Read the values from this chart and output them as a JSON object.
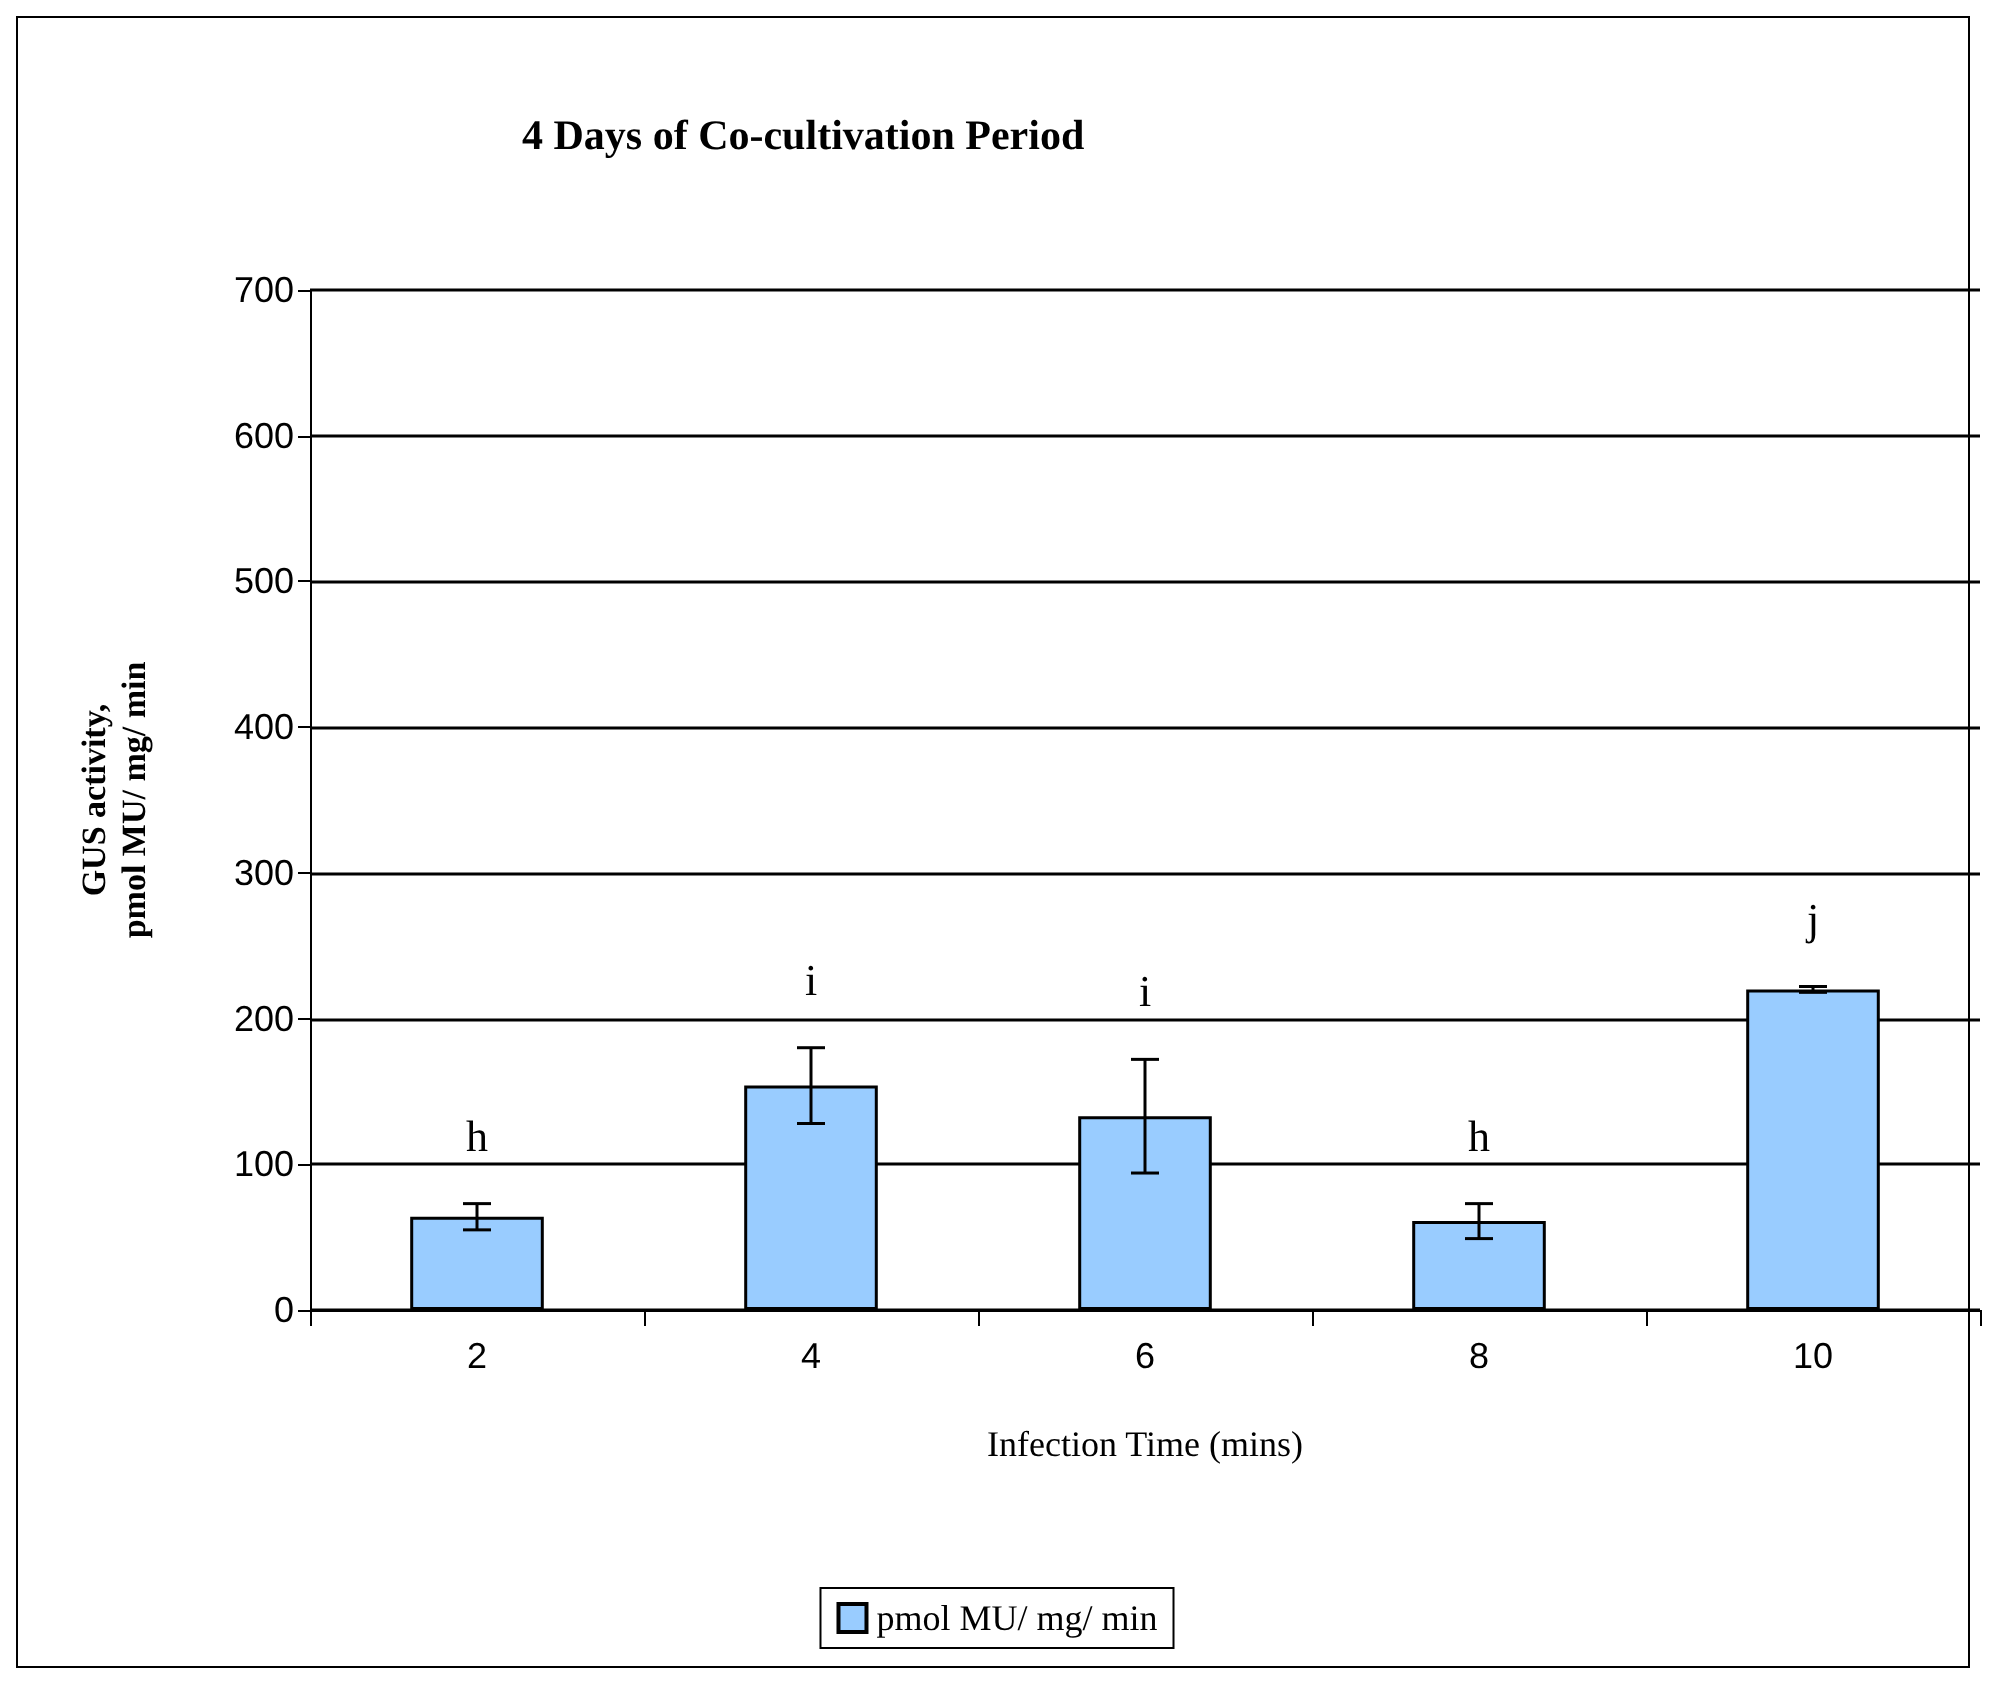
{
  "chart_data": {
    "type": "bar",
    "title": "4 Days of Co-cultivation Period",
    "xlabel": "Infection Time (mins)",
    "ylabel": "GUS activity,\npmol MU/ mg/ min",
    "categories": [
      "2",
      "4",
      "6",
      "8",
      "10"
    ],
    "series": [
      {
        "name": "pmol MU/ mg/ min",
        "color": "#99ccff",
        "values": [
          64,
          154,
          133,
          61,
          220
        ],
        "errors": [
          9,
          26,
          39,
          12,
          2
        ]
      }
    ],
    "ylim": [
      0,
      700
    ],
    "yticks": [
      0,
      100,
      200,
      300,
      400,
      500,
      600,
      700
    ],
    "grid": "y",
    "legend": "bottom",
    "annotations": [
      {
        "text": "h",
        "x": "2",
        "y": 64
      },
      {
        "text": "i",
        "x": "4",
        "y": 154
      },
      {
        "text": "i",
        "x": "6",
        "y": 133
      },
      {
        "text": "h",
        "x": "8",
        "y": 61
      },
      {
        "text": "j",
        "x": "10",
        "y": 220
      }
    ]
  }
}
